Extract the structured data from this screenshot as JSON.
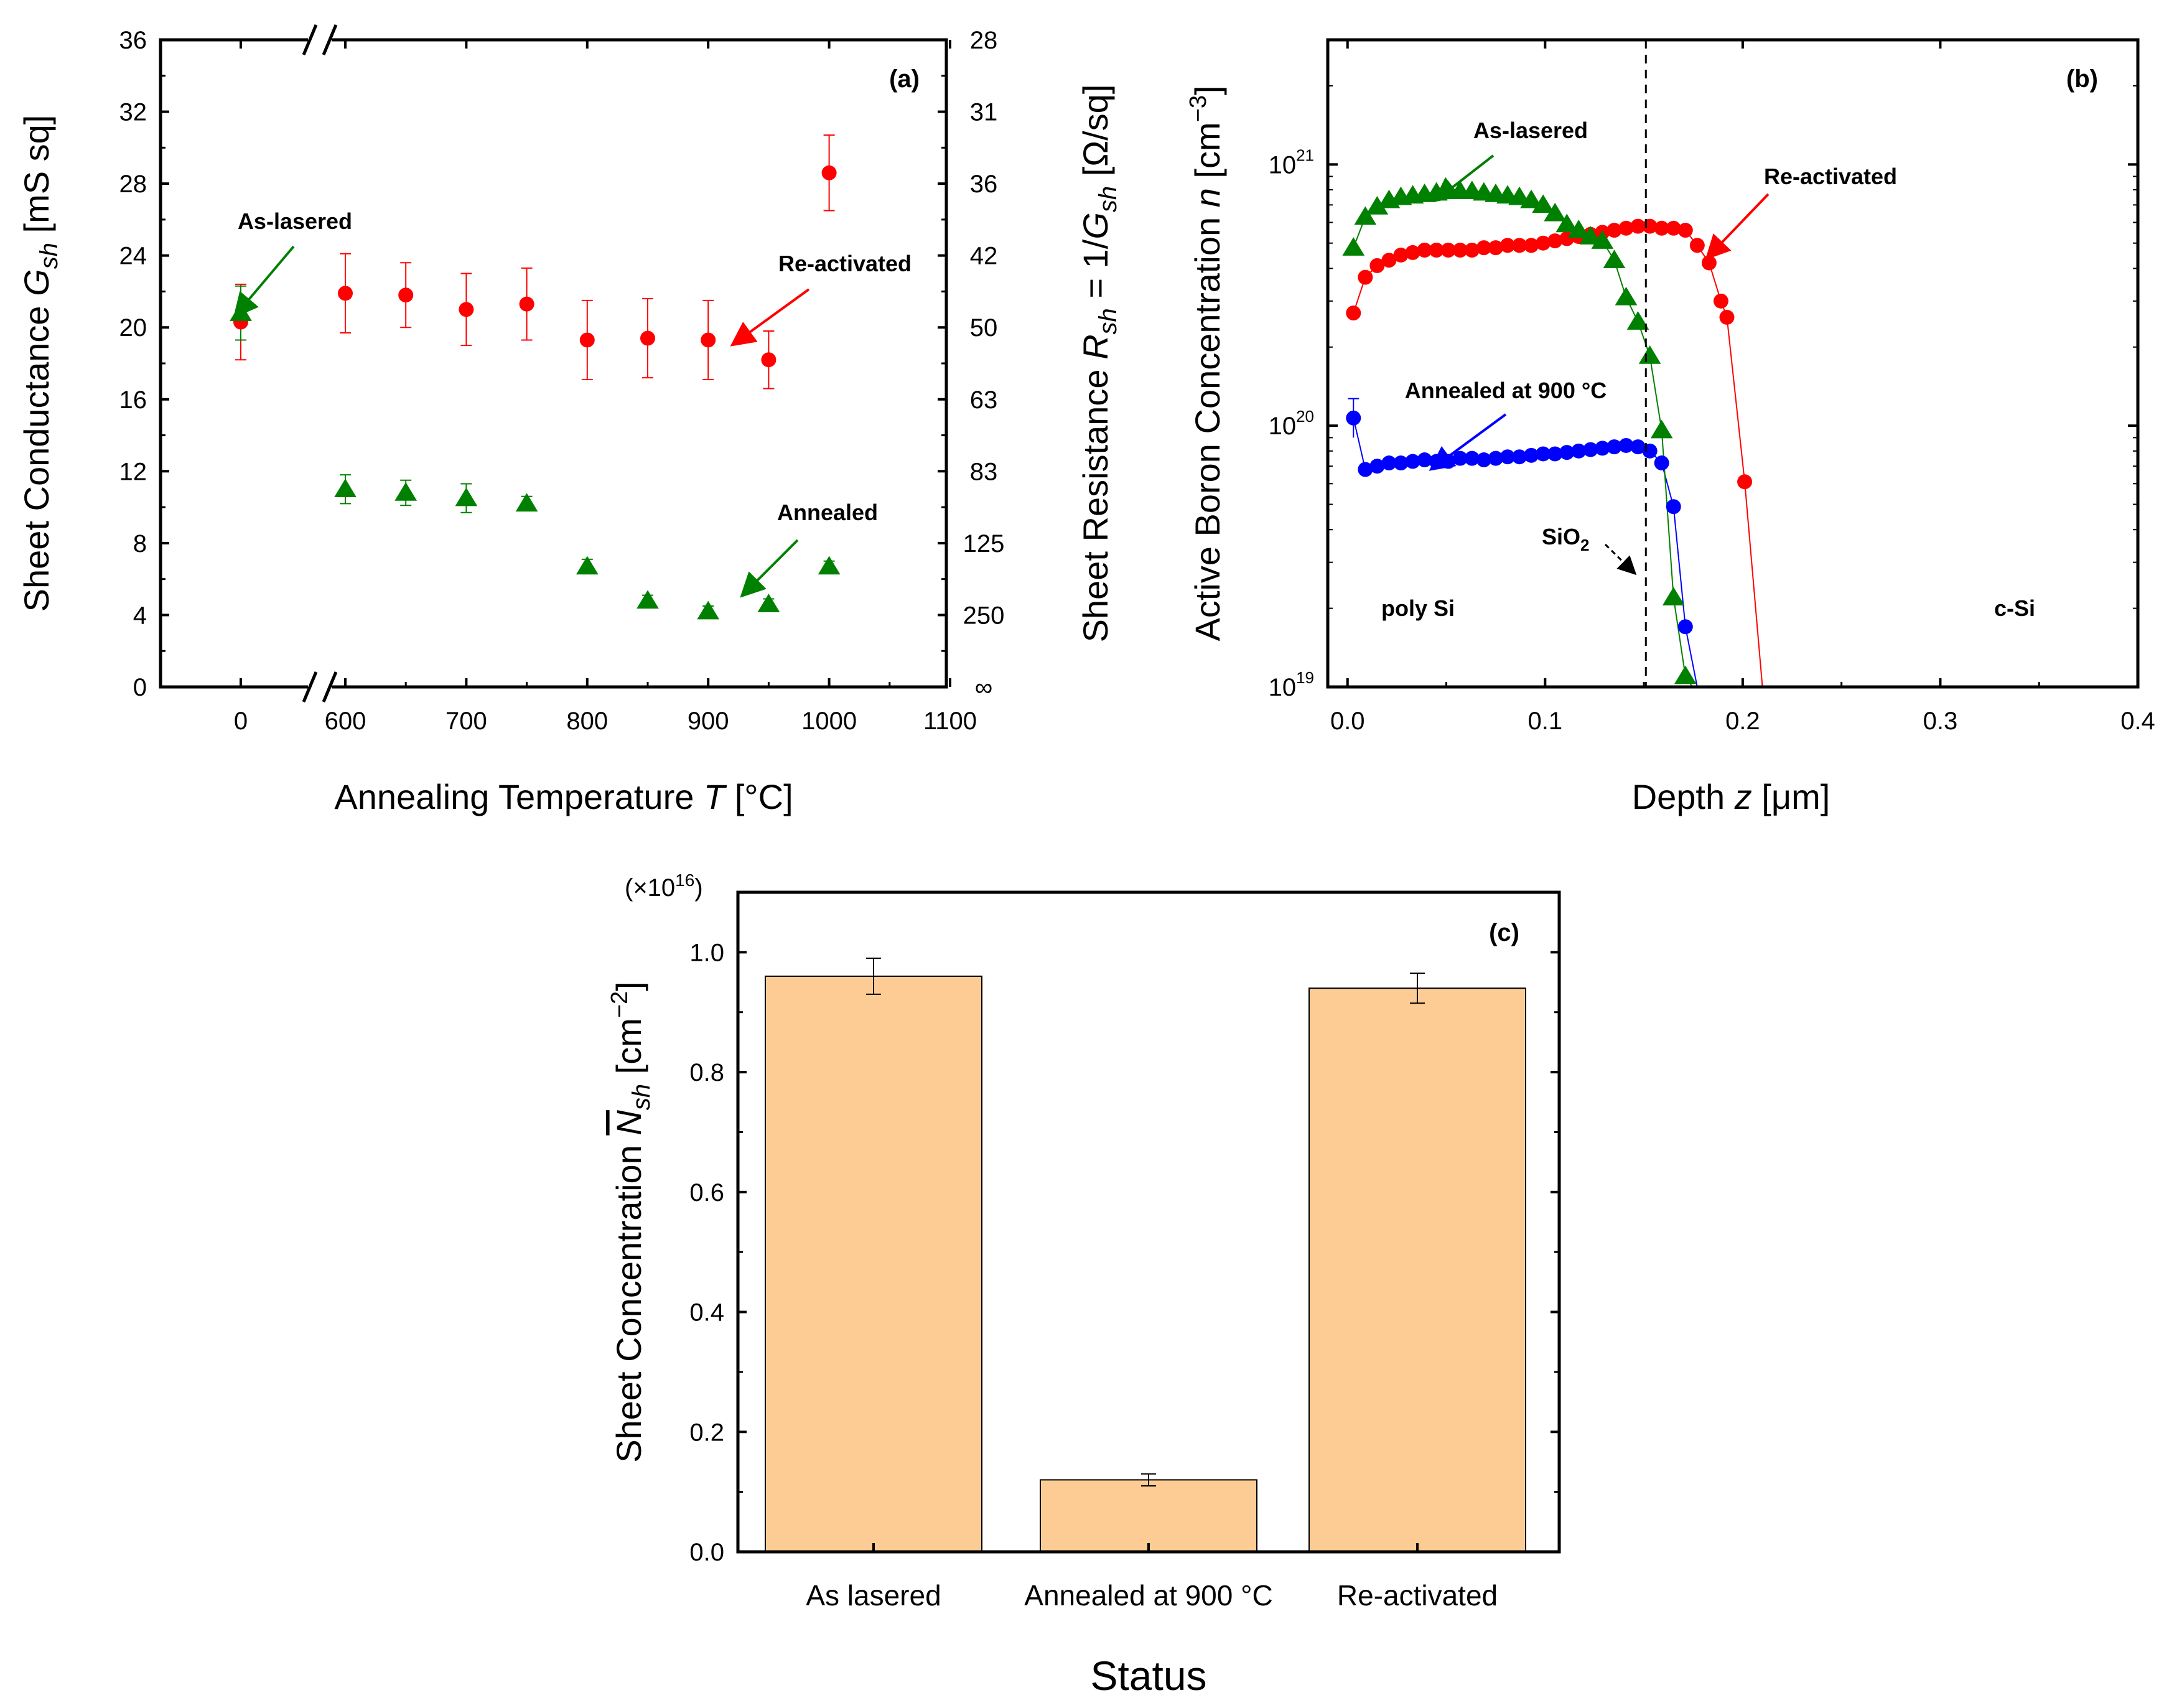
{
  "chart_data": [
    {
      "panel": "(a)",
      "type": "scatter",
      "xlabel": "Annealing Temperature T [°C]",
      "ylabel": "Sheet Conductance G_sh [mS sq]",
      "ylabel_right": "Sheet Resistance R_sh = 1/G_sh [Ω/sq]",
      "x_ticks_left": [
        "0"
      ],
      "x_ticks_right": [
        "600",
        "700",
        "800",
        "900",
        "1000",
        "1100"
      ],
      "y_ticks": [
        "0",
        "4",
        "8",
        "12",
        "16",
        "20",
        "24",
        "28",
        "32",
        "36"
      ],
      "right_ticks": [
        {
          "g": 0,
          "label": "∞"
        },
        {
          "g": 4,
          "label": "250"
        },
        {
          "g": 8,
          "label": "125"
        },
        {
          "g": 12,
          "label": "83"
        },
        {
          "g": 16,
          "label": "63"
        },
        {
          "g": 20,
          "label": "50"
        },
        {
          "g": 24,
          "label": "42"
        },
        {
          "g": 28,
          "label": "36"
        },
        {
          "g": 32,
          "label": "31"
        },
        {
          "g": 36,
          "label": "28"
        }
      ],
      "ylim": [
        0,
        36
      ],
      "series": [
        {
          "name": "Re-activated",
          "color": "#ff0000",
          "marker": "circle",
          "points": [
            {
              "x": 0,
              "y": 20.3,
              "err": 2.1
            },
            {
              "x": 600,
              "y": 21.9,
              "err": 2.2
            },
            {
              "x": 650,
              "y": 21.8,
              "err": 1.8
            },
            {
              "x": 700,
              "y": 21.0,
              "err": 2.0
            },
            {
              "x": 750,
              "y": 21.3,
              "err": 2.0
            },
            {
              "x": 800,
              "y": 19.3,
              "err": 2.2
            },
            {
              "x": 850,
              "y": 19.4,
              "err": 2.2
            },
            {
              "x": 900,
              "y": 19.3,
              "err": 2.2
            },
            {
              "x": 950,
              "y": 18.2,
              "err": 1.6
            },
            {
              "x": 1000,
              "y": 28.6,
              "err": 2.1
            }
          ]
        },
        {
          "name": "Annealed",
          "color": "#008000",
          "marker": "triangle",
          "points": [
            {
              "x": 0,
              "y": 20.8,
              "err": 1.5
            },
            {
              "x": 600,
              "y": 11.0,
              "err": 0.8
            },
            {
              "x": 650,
              "y": 10.8,
              "err": 0.7
            },
            {
              "x": 700,
              "y": 10.5,
              "err": 0.8
            },
            {
              "x": 750,
              "y": 10.2,
              "err": 0.4
            },
            {
              "x": 800,
              "y": 6.7,
              "err": 0.4
            },
            {
              "x": 850,
              "y": 4.8,
              "err": 0.3
            },
            {
              "x": 900,
              "y": 4.2,
              "err": 0.3
            },
            {
              "x": 950,
              "y": 4.6,
              "err": 0.3
            },
            {
              "x": 1000,
              "y": 6.7,
              "err": 0.3
            }
          ]
        }
      ],
      "annotations": [
        "As-lasered",
        "Re-activated",
        "Annealed"
      ]
    },
    {
      "panel": "(b)",
      "type": "line",
      "xlabel": "Depth z [μm]",
      "ylabel": "Active Boron Concentration n [cm⁻³]",
      "xlim": [
        -0.01,
        0.4
      ],
      "ylim": [
        1e+19,
        3e+21
      ],
      "log_y": true,
      "x_ticks": [
        "0.0",
        "0.1",
        "0.2",
        "0.3",
        "0.4"
      ],
      "y_ticks": [
        {
          "value": 1e+19,
          "base": "10",
          "exp": "19"
        },
        {
          "value": 1e+20,
          "base": "10",
          "exp": "20"
        },
        {
          "value": 1e+21,
          "base": "10",
          "exp": "21"
        }
      ],
      "interface_depth": 0.151,
      "series": [
        {
          "name": "As-lasered",
          "color": "#008000",
          "marker": "triangle",
          "x": [
            0.003,
            0.009,
            0.015,
            0.021,
            0.027,
            0.033,
            0.039,
            0.045,
            0.051,
            0.057,
            0.063,
            0.069,
            0.075,
            0.081,
            0.087,
            0.093,
            0.099,
            0.105,
            0.111,
            0.117,
            0.123,
            0.129,
            0.135,
            0.141,
            0.147,
            0.153,
            0.159,
            0.165,
            0.171,
            0.1745
          ],
          "y": [
            4.8e+20,
            6.3e+20,
            6.9e+20,
            7.3e+20,
            7.5e+20,
            7.6e+20,
            7.7e+20,
            7.8e+20,
            7.9e+20,
            7.9e+20,
            7.9e+20,
            7.8e+20,
            7.7e+20,
            7.6e+20,
            7.5e+20,
            7.3e+20,
            7e+20,
            6.5e+20,
            5.9e+20,
            5.6e+20,
            5.3e+20,
            5.1e+20,
            4.3e+20,
            3.1e+20,
            2.5e+20,
            1.85e+20,
            9.6e+19,
            2.2e+19,
            1.1e+19,
            1e+19
          ]
        },
        {
          "name": "Re-activated",
          "color": "#ff0000",
          "marker": "circle",
          "x": [
            0.003,
            0.009,
            0.015,
            0.021,
            0.027,
            0.033,
            0.039,
            0.045,
            0.051,
            0.057,
            0.063,
            0.069,
            0.075,
            0.081,
            0.087,
            0.093,
            0.099,
            0.105,
            0.111,
            0.117,
            0.123,
            0.129,
            0.135,
            0.141,
            0.147,
            0.153,
            0.159,
            0.165,
            0.171,
            0.177,
            0.183,
            0.189,
            0.192,
            0.201,
            0.21
          ],
          "y": [
            2.7e+20,
            3.7e+20,
            4.1e+20,
            4.3e+20,
            4.5e+20,
            4.6e+20,
            4.7e+20,
            4.7e+20,
            4.7e+20,
            4.7e+20,
            4.7e+20,
            4.8e+20,
            4.8e+20,
            4.9e+20,
            4.9e+20,
            4.9e+20,
            5e+20,
            5.1e+20,
            5.2e+20,
            5.3e+20,
            5.4e+20,
            5.5e+20,
            5.6e+20,
            5.7e+20,
            5.8e+20,
            5.8e+20,
            5.7e+20,
            5.7e+20,
            5.6e+20,
            4.9e+20,
            4.2e+20,
            3e+20,
            2.6e+20,
            6.1e+19,
            1e+19
          ]
        },
        {
          "name": "Annealed at 900 °C",
          "color": "#0000ff",
          "marker": "circle",
          "x": [
            0.003,
            0.009,
            0.015,
            0.021,
            0.027,
            0.033,
            0.039,
            0.045,
            0.051,
            0.057,
            0.063,
            0.069,
            0.075,
            0.081,
            0.087,
            0.093,
            0.099,
            0.105,
            0.111,
            0.117,
            0.123,
            0.129,
            0.135,
            0.141,
            0.147,
            0.153,
            0.159,
            0.165,
            0.171,
            0.177
          ],
          "y": [
            1.07e+20,
            6.8e+19,
            7e+19,
            7.2e+19,
            7.2e+19,
            7.3e+19,
            7.4e+19,
            7.3e+19,
            7.3e+19,
            7.5e+19,
            7.5e+19,
            7.4e+19,
            7.5e+19,
            7.6e+19,
            7.6e+19,
            7.7e+19,
            7.8e+19,
            7.8e+19,
            7.9e+19,
            8e+19,
            8.1e+19,
            8.2e+19,
            8.3e+19,
            8.4e+19,
            8.3e+19,
            8e+19,
            7.2e+19,
            4.9e+19,
            1.7e+19,
            1e+19
          ]
        }
      ],
      "annotations": {
        "as_lasered": "As-lasered",
        "re_activated": "Re-activated",
        "annealed": "Annealed at 900 °C",
        "sio2": "SiO",
        "sio2_sub": "2",
        "poly": "poly Si",
        "csi": "c-Si"
      }
    },
    {
      "panel": "(c)",
      "type": "bar",
      "xlabel": "Status",
      "ylabel": "Sheet Concentration N_sh [cm⁻²]",
      "multiplier": "(×10",
      "multiplier_exp": "16",
      "multiplier_end": ")",
      "categories": [
        "As lasered",
        "Annealed at 900 °C",
        "Re-activated"
      ],
      "values": [
        0.96,
        0.12,
        0.94
      ],
      "errors": [
        0.03,
        0.01,
        0.025
      ],
      "bar_color": "#fdcc94",
      "ylim": [
        0,
        1.1
      ],
      "y_ticks": [
        "0.0",
        "0.2",
        "0.4",
        "0.6",
        "0.8",
        "1.0"
      ]
    }
  ]
}
